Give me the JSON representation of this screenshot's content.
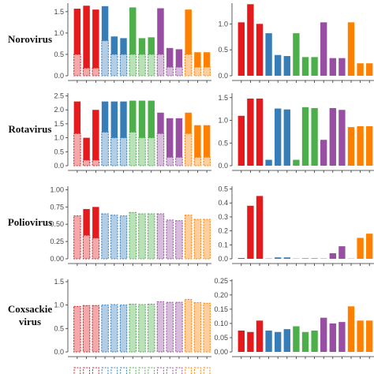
{
  "colors": {
    "red": "#e41a1c",
    "blue": "#377eb8",
    "green": "#4daf4a",
    "purple": "#984ea3",
    "orange": "#ff7f00"
  },
  "groups": [
    "red",
    "blue",
    "green",
    "purple",
    "orange"
  ],
  "chart_data": [
    {
      "type": "bar",
      "row": 0,
      "col": "left",
      "row_label": [
        "Norovirus"
      ],
      "ylim": [
        0,
        1.7
      ],
      "yticks": [
        "0.0",
        "0.5",
        "1.0",
        "1.5"
      ],
      "ytick_values": [
        0,
        0.5,
        1.0,
        1.5
      ],
      "series": [
        {
          "values": [
            1.57,
            1.64,
            1.55,
            1.63,
            0.92,
            0.88,
            1.6,
            0.88,
            0.9,
            1.58,
            0.65,
            0.62,
            1.55,
            0.55,
            0.55
          ],
          "style": "solid"
        },
        {
          "values": [
            0.5,
            0.18,
            0.18,
            0.82,
            0.5,
            0.5,
            0.5,
            0.5,
            0.5,
            0.5,
            0.2,
            0.2,
            0.5,
            0.2,
            0.2
          ],
          "style": "dashed"
        }
      ]
    },
    {
      "type": "bar",
      "row": 0,
      "col": "right",
      "ylim": [
        0,
        1.4
      ],
      "yticks": [
        "0.0",
        "0.5",
        "1.0"
      ],
      "ytick_values": [
        0,
        0.5,
        1.0
      ],
      "series": [
        {
          "values": [
            1.03,
            1.38,
            1.0,
            0.82,
            0.4,
            0.38,
            0.82,
            0.36,
            0.36,
            1.03,
            0.34,
            0.34,
            1.03,
            0.24,
            0.24
          ],
          "style": "solid"
        }
      ]
    },
    {
      "type": "bar",
      "row": 1,
      "col": "left",
      "row_label": [
        "Rotavirus"
      ],
      "ylim": [
        0,
        2.6
      ],
      "yticks": [
        "0.0",
        "0.5",
        "1.0",
        "1.5",
        "2.0",
        "2.5"
      ],
      "ytick_values": [
        0,
        0.5,
        1.0,
        1.5,
        2.0,
        2.5
      ],
      "series": [
        {
          "values": [
            2.3,
            1.0,
            2.0,
            2.3,
            2.3,
            2.3,
            2.33,
            2.33,
            2.33,
            1.9,
            1.7,
            1.7,
            1.9,
            1.45,
            1.45
          ],
          "style": "solid"
        },
        {
          "values": [
            1.15,
            0.2,
            0.2,
            1.2,
            1.0,
            1.0,
            1.2,
            1.0,
            1.0,
            1.15,
            0.3,
            0.3,
            1.15,
            0.3,
            0.3
          ],
          "style": "dashed"
        }
      ]
    },
    {
      "type": "bar",
      "row": 1,
      "col": "right",
      "ylim": [
        0,
        1.6
      ],
      "yticks": [
        "0.0",
        "0.5",
        "1.0",
        "1.5"
      ],
      "ytick_values": [
        0,
        0.5,
        1.0,
        1.5
      ],
      "series": [
        {
          "values": [
            1.1,
            1.48,
            1.48,
            0.13,
            1.26,
            1.24,
            0.13,
            1.29,
            1.27,
            0.57,
            1.27,
            1.23,
            0.85,
            0.87,
            0.87
          ],
          "style": "solid"
        }
      ]
    },
    {
      "type": "bar",
      "row": 2,
      "col": "left",
      "row_label": [
        "Poliovirus"
      ],
      "ylim": [
        0,
        1.05
      ],
      "yticks": [
        "0.00",
        "0.25",
        "0.50",
        "0.75",
        "1.00"
      ],
      "ytick_values": [
        0,
        0.25,
        0.5,
        0.75,
        1.0
      ],
      "series": [
        {
          "values": [
            0.62,
            0.72,
            0.75,
            0.65,
            0.63,
            0.62,
            0.67,
            0.65,
            0.65,
            0.65,
            0.56,
            0.55,
            0.63,
            0.57,
            0.57
          ],
          "style": "solid"
        },
        {
          "values": [
            0.62,
            0.34,
            0.3,
            0.65,
            0.63,
            0.62,
            0.67,
            0.65,
            0.65,
            0.65,
            0.56,
            0.55,
            0.63,
            0.57,
            0.57
          ],
          "style": "dashed"
        }
      ]
    },
    {
      "type": "bar",
      "row": 2,
      "col": "right",
      "ylim": [
        0,
        0.52
      ],
      "yticks": [
        "0.0",
        "0.1",
        "0.2",
        "0.3",
        "0.4",
        "0.5"
      ],
      "ytick_values": [
        0,
        0.1,
        0.2,
        0.3,
        0.4,
        0.5
      ],
      "series": [
        {
          "values": [
            0.005,
            0.38,
            0.45,
            0.002,
            0.01,
            0.01,
            0.002,
            0.004,
            0.004,
            0.002,
            0.04,
            0.09,
            0.002,
            0.15,
            0.18
          ],
          "style": "solid"
        }
      ]
    },
    {
      "type": "bar",
      "row": 3,
      "col": "left",
      "row_label": [
        "Coxsackie",
        "virus"
      ],
      "ylim": [
        0,
        1.55
      ],
      "yticks": [
        "0.0",
        "0.5",
        "1.0",
        "1.5"
      ],
      "ytick_values": [
        0,
        0.5,
        1.0,
        1.5
      ],
      "series": [
        {
          "values": [
            0.97,
            0.99,
            0.99,
            1.0,
            1.01,
            1.0,
            1.02,
            1.01,
            1.02,
            1.07,
            1.06,
            1.06,
            1.12,
            1.05,
            1.04
          ],
          "style": "solid"
        },
        {
          "values": [
            0.97,
            0.99,
            0.99,
            1.0,
            1.01,
            1.0,
            1.02,
            1.01,
            1.02,
            1.07,
            1.06,
            1.06,
            1.12,
            1.05,
            1.04
          ],
          "style": "dashed"
        }
      ]
    },
    {
      "type": "bar",
      "row": 3,
      "col": "right",
      "ylim": [
        0,
        0.255
      ],
      "yticks": [
        "0.00",
        "0.05",
        "0.10",
        "0.15",
        "0.20",
        "0.25"
      ],
      "ytick_values": [
        0,
        0.05,
        0.1,
        0.15,
        0.2,
        0.25
      ],
      "series": [
        {
          "values": [
            0.075,
            0.07,
            0.11,
            0.075,
            0.07,
            0.08,
            0.09,
            0.07,
            0.075,
            0.12,
            0.1,
            0.105,
            0.16,
            0.11,
            0.11
          ],
          "style": "solid"
        }
      ]
    }
  ]
}
